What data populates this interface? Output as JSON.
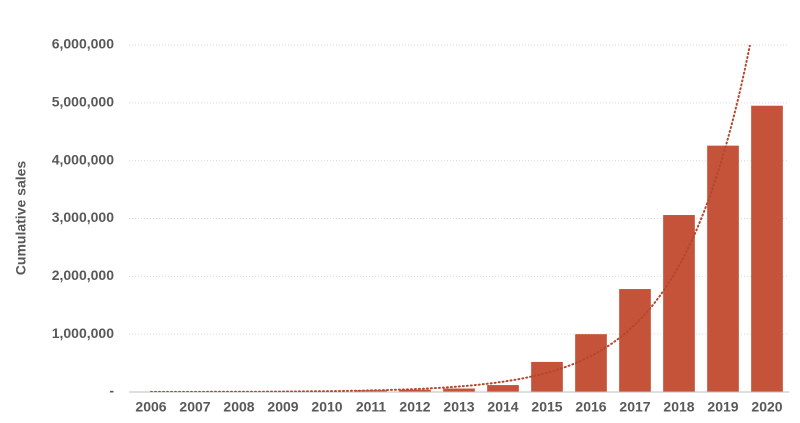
{
  "chart_data": {
    "type": "bar",
    "y_axis_label": "Cumulative sales",
    "categories": [
      "2006",
      "2007",
      "2008",
      "2009",
      "2010",
      "2011",
      "2012",
      "2013",
      "2014",
      "2015",
      "2016",
      "2017",
      "2018",
      "2019",
      "2020"
    ],
    "values": [
      2500,
      3000,
      4000,
      5000,
      6000,
      30000,
      40000,
      60000,
      120000,
      520000,
      1000000,
      1780000,
      3060000,
      4260000,
      4950000
    ],
    "color": "#c4533a",
    "ylim": [
      0,
      6000000
    ],
    "yticks": [
      {
        "value": 0,
        "label": "-"
      },
      {
        "value": 1000000,
        "label": "1,000,000"
      },
      {
        "value": 2000000,
        "label": "2,000,000"
      },
      {
        "value": 3000000,
        "label": "3,000,000"
      },
      {
        "value": 4000000,
        "label": "4,000,000"
      },
      {
        "value": 5000000,
        "label": "5,000,000"
      },
      {
        "value": 6000000,
        "label": "6,000,000"
      }
    ],
    "grid": true,
    "trendline": "exponential",
    "trendline_color": "#b5472f"
  }
}
